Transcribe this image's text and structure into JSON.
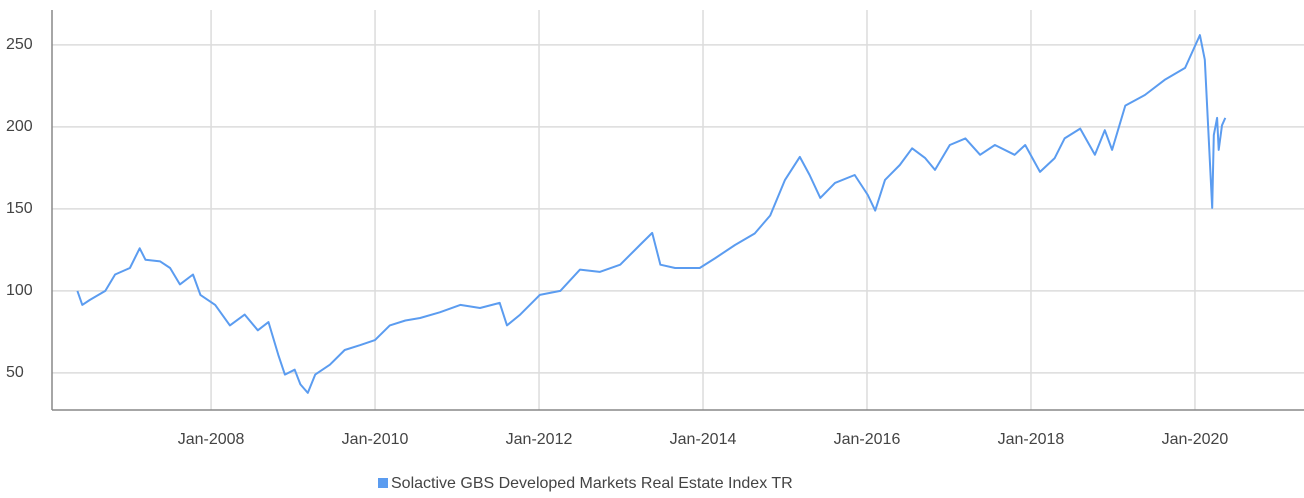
{
  "chart_data": {
    "type": "line",
    "x": [
      2006.37,
      2006.43,
      2006.52,
      2006.71,
      2006.83,
      2007.01,
      2007.13,
      2007.2,
      2007.38,
      2007.5,
      2007.62,
      2007.78,
      2007.87,
      2008.05,
      2008.23,
      2008.41,
      2008.57,
      2008.7,
      2008.82,
      2008.9,
      2009.02,
      2009.09,
      2009.18,
      2009.27,
      2009.45,
      2009.63,
      2009.82,
      2010.0,
      2010.18,
      2010.37,
      2010.55,
      2010.79,
      2011.04,
      2011.28,
      2011.52,
      2011.61,
      2011.77,
      2012.01,
      2012.26,
      2012.5,
      2012.74,
      2012.99,
      2013.23,
      2013.38,
      2013.48,
      2013.66,
      2013.84,
      2013.96,
      2014.15,
      2014.39,
      2014.63,
      2014.82,
      2015.0,
      2015.18,
      2015.3,
      2015.43,
      2015.61,
      2015.85,
      2016.01,
      2016.1,
      2016.22,
      2016.4,
      2016.55,
      2016.71,
      2016.83,
      2017.01,
      2017.2,
      2017.38,
      2017.56,
      2017.8,
      2017.93,
      2018.11,
      2018.29,
      2018.41,
      2018.6,
      2018.78,
      2018.9,
      2018.99,
      2019.15,
      2019.39,
      2019.63,
      2019.88,
      2020.06,
      2020.12,
      2020.21,
      2020.23,
      2020.27,
      2020.29,
      2020.33,
      2020.37
    ],
    "series": [
      {
        "name": "Solactive GBS Developed Markets Real Estate Index TR",
        "color": "#5b9cf0",
        "values": [
          100,
          91.5,
          94.5,
          100,
          110,
          114,
          126,
          119,
          118,
          114,
          104,
          110,
          97.6,
          91.5,
          79,
          85.6,
          76,
          81,
          61,
          49,
          52,
          43,
          37.8,
          49,
          55,
          64,
          67,
          70,
          79,
          82,
          83.5,
          87,
          91.5,
          89.6,
          92.7,
          79,
          85.6,
          97.6,
          100,
          113,
          111.6,
          116,
          128,
          135.4,
          116,
          114,
          114,
          114,
          120,
          128,
          135,
          146,
          167.7,
          181.7,
          170.7,
          156.7,
          165.9,
          170.7,
          158.5,
          149,
          167.7,
          176.8,
          187,
          181,
          173.8,
          189,
          193,
          183,
          189,
          183,
          189,
          172.6,
          181,
          193,
          199,
          183,
          198,
          186,
          213,
          219.5,
          228.7,
          236,
          256,
          241,
          150.6,
          195,
          205.5,
          186,
          201,
          205.5
        ]
      }
    ],
    "xlim": [
      2006.06,
      2021.33
    ],
    "xticks": [
      {
        "value": 2008,
        "label": "Jan-2008"
      },
      {
        "value": 2010,
        "label": "Jan-2010"
      },
      {
        "value": 2012,
        "label": "Jan-2012"
      },
      {
        "value": 2014,
        "label": "Jan-2014"
      },
      {
        "value": 2016,
        "label": "Jan-2016"
      },
      {
        "value": 2018,
        "label": "Jan-2018"
      },
      {
        "value": 2020,
        "label": "Jan-2020"
      }
    ],
    "ylim": [
      27.4,
      271.3
    ],
    "yticks": [
      50,
      100,
      150,
      200,
      250
    ],
    "grid": true,
    "legend": "bottom"
  }
}
